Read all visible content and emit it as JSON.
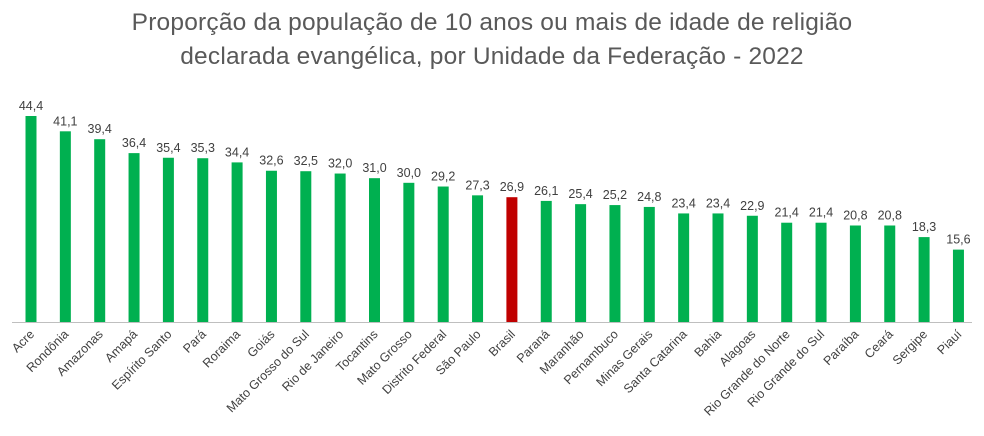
{
  "chart_data": {
    "type": "bar",
    "title_lines": [
      "Proporção da população de 10 anos ou mais de idade de religião",
      "declarada evangélica, por Unidade da Federação - 2022"
    ],
    "categories": [
      "Acre",
      "Rondônia",
      "Amazonas",
      "Amapá",
      "Espírito Santo",
      "Pará",
      "Roraima",
      "Goiás",
      "Mato Grosso do Sul",
      "Rio de Janeiro",
      "Tocantins",
      "Mato Grosso",
      "Distrito Federal",
      "São Paulo",
      "Brasil",
      "Paraná",
      "Maranhão",
      "Pernambuco",
      "Minas Gerais",
      "Santa Catarina",
      "Bahia",
      "Alagoas",
      "Rio Grande do Norte",
      "Rio Grande do Sul",
      "Paraíba",
      "Ceará",
      "Sergipe",
      "Piauí"
    ],
    "values": [
      44.4,
      41.1,
      39.4,
      36.4,
      35.4,
      35.3,
      34.4,
      32.6,
      32.5,
      32.0,
      31.0,
      30.0,
      29.2,
      27.3,
      26.9,
      26.1,
      25.4,
      25.2,
      24.8,
      23.4,
      23.4,
      22.9,
      21.4,
      21.4,
      20.8,
      20.8,
      18.3,
      15.6
    ],
    "value_labels": [
      "44,4",
      "41,1",
      "39,4",
      "36,4",
      "35,4",
      "35,3",
      "34,4",
      "32,6",
      "32,5",
      "32,0",
      "31,0",
      "30,0",
      "29,2",
      "27,3",
      "26,9",
      "26,1",
      "25,4",
      "25,2",
      "24,8",
      "23,4",
      "23,4",
      "22,9",
      "21,4",
      "21,4",
      "20,8",
      "20,8",
      "18,3",
      "15,6"
    ],
    "highlight_category": "Brasil",
    "colors": {
      "bar": "#00b050",
      "highlight": "#c00000",
      "axis": "#bfbfbf",
      "text": "#404040",
      "title": "#595959"
    },
    "ylim": [
      0,
      44.4
    ],
    "grid": false,
    "legend": "none"
  }
}
